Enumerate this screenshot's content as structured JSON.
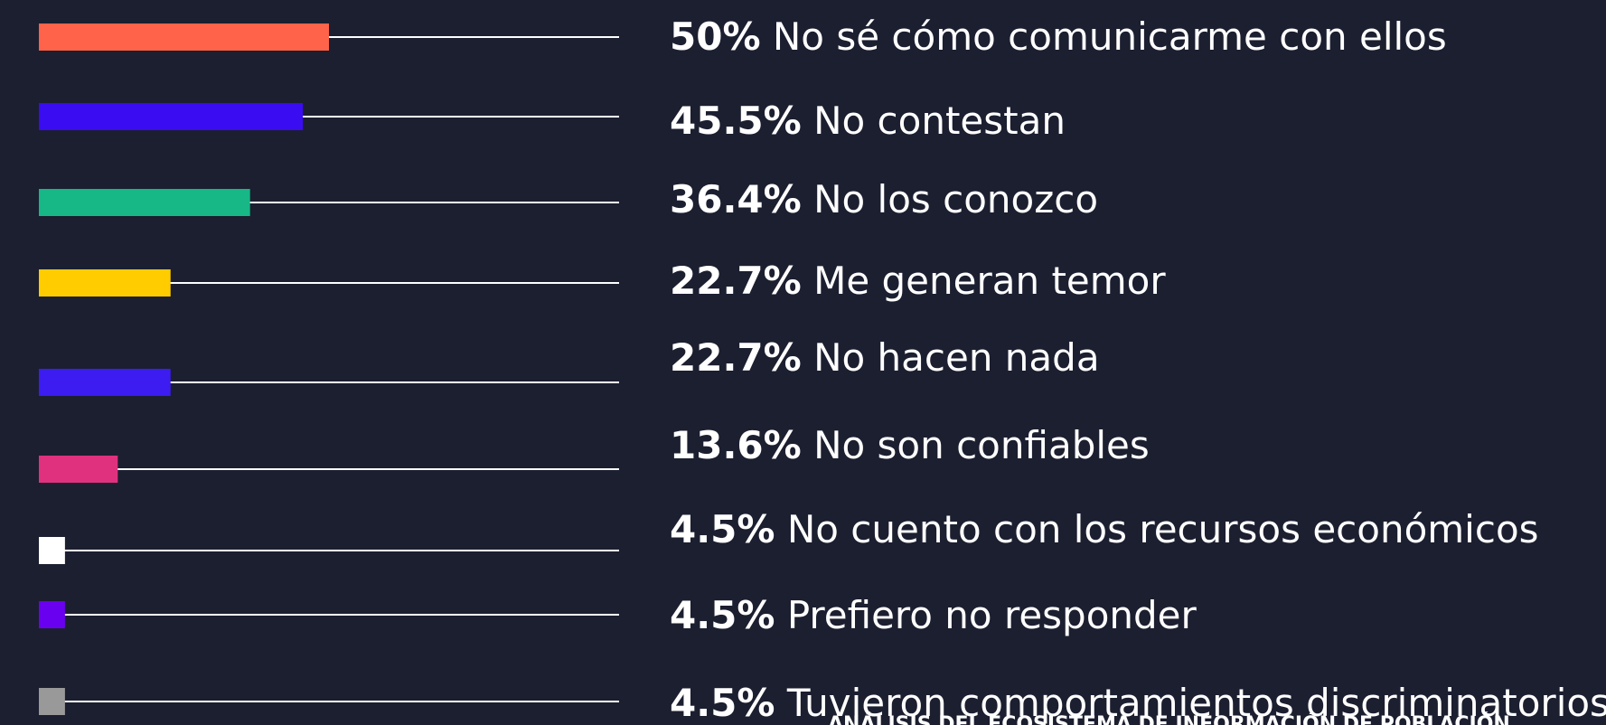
{
  "chart_data": {
    "type": "bar",
    "orientation": "horizontal",
    "categories": [
      "No sé cómo comunicarme con ellos",
      "No contestan",
      "No los conozco",
      "Me generan temor",
      "No hacen nada",
      "No son confiables",
      "No cuento con los recursos económicos",
      "Prefiero no responder",
      "Tuvieron comportamientos discriminatorios"
    ],
    "values": [
      50,
      45.5,
      36.4,
      22.7,
      22.7,
      13.6,
      4.5,
      4.5,
      4.5
    ],
    "value_labels": [
      "50%",
      "45.5%",
      "36.4%",
      "22.7%",
      "22.7%",
      "13.6%",
      "4.5%",
      "4.5%",
      "4.5%"
    ],
    "colors": [
      "#ff6349",
      "#3a0cf2",
      "#17b886",
      "#ffcc00",
      "#3c1cf0",
      "#e0317f",
      "#ffffff",
      "#6a00f0",
      "#999999"
    ],
    "xlim": [
      0,
      100
    ],
    "footer": "ANÁLISIS DEL ECOSISTEMA DE INFORMACIÓN DE POBLACIÓN"
  }
}
